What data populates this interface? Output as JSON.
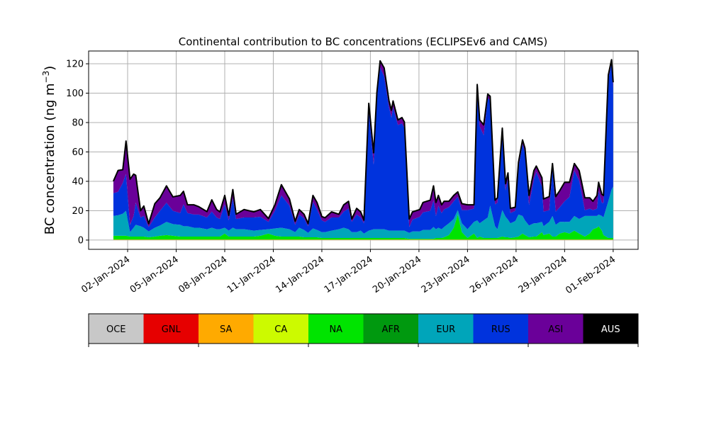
{
  "chart_data": {
    "type": "area",
    "stacked": true,
    "title": "Continental contribution to BC concentrations (ECLIPSEv6 and CAMS)",
    "ylabel": "BC concentration (ng m",
    "ylabel_sup": "−3",
    "ylabel_close": ")",
    "xlabel": "",
    "ylim": [
      -6.3,
      128.7
    ],
    "xlim_days_since_01jan2024": [
      -1.41,
      32.54
    ],
    "grid": true,
    "yticks": [
      0,
      20,
      40,
      60,
      80,
      100,
      120
    ],
    "xticks": [
      {
        "t": 1,
        "label": "02-Jan-2024"
      },
      {
        "t": 4,
        "label": "05-Jan-2024"
      },
      {
        "t": 7,
        "label": "08-Jan-2024"
      },
      {
        "t": 10,
        "label": "11-Jan-2024"
      },
      {
        "t": 13,
        "label": "14-Jan-2024"
      },
      {
        "t": 16,
        "label": "17-Jan-2024"
      },
      {
        "t": 19,
        "label": "20-Jan-2024"
      },
      {
        "t": 22,
        "label": "23-Jan-2024"
      },
      {
        "t": 25,
        "label": "26-Jan-2024"
      },
      {
        "t": 28,
        "label": "29-Jan-2024"
      },
      {
        "t": 31,
        "label": "01-Feb-2024"
      }
    ],
    "x_unit": "days since 01-Jan-2024",
    "series_order": [
      "NA",
      "EUR",
      "RUS",
      "ASI"
    ],
    "series_colors": {
      "NA": "#00e400",
      "EUR": "#00a5ba",
      "RUS": "#0033dd",
      "ASI": "#6a0099"
    },
    "total_line_color": "#000000",
    "points": [
      [
        0.12,
        2.5,
        13.5,
        15.5,
        8.2
      ],
      [
        0.41,
        2.5,
        14,
        16,
        14.5
      ],
      [
        0.7,
        2.5,
        15,
        21,
        9
      ],
      [
        0.9,
        2.5,
        17,
        25,
        22.5
      ],
      [
        1.15,
        2,
        3,
        5,
        31
      ],
      [
        1.37,
        2,
        6,
        8,
        28.5
      ],
      [
        1.5,
        2,
        8,
        15,
        18.7
      ],
      [
        1.8,
        2,
        7,
        6,
        4.6
      ],
      [
        2.0,
        2,
        6,
        8,
        6.8
      ],
      [
        2.3,
        1.5,
        4,
        3,
        2.3
      ],
      [
        2.68,
        2,
        6,
        7,
        9.4
      ],
      [
        3.0,
        2.5,
        7,
        10,
        8.9
      ],
      [
        3.4,
        3,
        9,
        13,
        11.5
      ],
      [
        3.8,
        2.5,
        8,
        9,
        9.5
      ],
      [
        4.25,
        2,
        8,
        8,
        12
      ],
      [
        4.45,
        2,
        7,
        15,
        8.8
      ],
      [
        4.7,
        2,
        7,
        9,
        5.6
      ],
      [
        5.1,
        2,
        6,
        9,
        6.6
      ],
      [
        5.4,
        2,
        6,
        9,
        5.3
      ],
      [
        5.9,
        2,
        5,
        8,
        4
      ],
      [
        6.2,
        2,
        6,
        11,
        8
      ],
      [
        6.5,
        2,
        5,
        8,
        5.4
      ],
      [
        6.7,
        2,
        5,
        7,
        4.8
      ],
      [
        7.0,
        4,
        4,
        16,
        6
      ],
      [
        7.25,
        2,
        4,
        7,
        3.4
      ],
      [
        7.5,
        2,
        6,
        20,
        6
      ],
      [
        7.7,
        2,
        5,
        7,
        3.2
      ],
      [
        8.2,
        2,
        5,
        8,
        5.4
      ],
      [
        8.8,
        2,
        4,
        9,
        3.8
      ],
      [
        9.2,
        2.5,
        4,
        9,
        4.9
      ],
      [
        9.7,
        4,
        3,
        5,
        2.3
      ],
      [
        10.1,
        2.5,
        5,
        12,
        4.1
      ],
      [
        10.5,
        2,
        6,
        22,
        7.3
      ],
      [
        11.0,
        2,
        5,
        16,
        4.6
      ],
      [
        11.35,
        2,
        3,
        5,
        2.4
      ],
      [
        11.6,
        2,
        6,
        9,
        3.4
      ],
      [
        11.9,
        1.5,
        5,
        8,
        2.7
      ],
      [
        12.15,
        1.5,
        3,
        4.5,
        1.8
      ],
      [
        12.45,
        1.5,
        6,
        18,
        4.5
      ],
      [
        12.7,
        1.5,
        5,
        14,
        4.7
      ],
      [
        13.0,
        1,
        4,
        8,
        2.6
      ],
      [
        13.2,
        1,
        4,
        7,
        2.8
      ],
      [
        13.6,
        1,
        5,
        9,
        3.8
      ],
      [
        14.05,
        1,
        6,
        8,
        2.2
      ],
      [
        14.35,
        1,
        7,
        11,
        4.6
      ],
      [
        14.65,
        1,
        6,
        14,
        5
      ],
      [
        14.85,
        1,
        4,
        7,
        2
      ],
      [
        15.15,
        1,
        4,
        12,
        4.2
      ],
      [
        15.4,
        1,
        5,
        9,
        3.8
      ],
      [
        15.6,
        1,
        3,
        7,
        2.2
      ],
      [
        15.9,
        1,
        5,
        82,
        4.7
      ],
      [
        16.2,
        1,
        6,
        44,
        8
      ],
      [
        16.4,
        1,
        6,
        90,
        3
      ],
      [
        16.6,
        1,
        6,
        110,
        4.6
      ],
      [
        16.85,
        1,
        6,
        104,
        5.8
      ],
      [
        17.15,
        1,
        5,
        84,
        4.3
      ],
      [
        17.3,
        1,
        5,
        77,
        5
      ],
      [
        17.4,
        1,
        5,
        84,
        4.3
      ],
      [
        17.7,
        1,
        5,
        72,
        3.4
      ],
      [
        17.95,
        1,
        5,
        73,
        4
      ],
      [
        18.1,
        1,
        5,
        70,
        4
      ],
      [
        18.4,
        0.5,
        4,
        4,
        5.5
      ],
      [
        18.6,
        0.5,
        5,
        8,
        5.3
      ],
      [
        19.05,
        0.5,
        5,
        10,
        4.9
      ],
      [
        19.25,
        0.5,
        6,
        12,
        6.7
      ],
      [
        19.7,
        0.5,
        6,
        13,
        7.3
      ],
      [
        19.9,
        0.5,
        8,
        18,
        10
      ],
      [
        20.05,
        1,
        6,
        9,
        9.2
      ],
      [
        20.2,
        1,
        7,
        15,
        7
      ],
      [
        20.4,
        1,
        6,
        11,
        5.6
      ],
      [
        20.55,
        1.5,
        7,
        12,
        5.5
      ],
      [
        20.85,
        3,
        8,
        11,
        4
      ],
      [
        21.15,
        8,
        6,
        12,
        4
      ],
      [
        21.4,
        17,
        3,
        9,
        3.4
      ],
      [
        21.65,
        5,
        6,
        9,
        4.4
      ],
      [
        22.0,
        1,
        6,
        13,
        3.6
      ],
      [
        22.4,
        4,
        8,
        9,
        2.6
      ],
      [
        22.6,
        1,
        12,
        88,
        4.5
      ],
      [
        22.75,
        2,
        9,
        66,
        4.4
      ],
      [
        23.0,
        1,
        12,
        58,
        7
      ],
      [
        23.25,
        1,
        14,
        81,
        3
      ],
      [
        23.4,
        1,
        22,
        72,
        2.5
      ],
      [
        23.7,
        1,
        8,
        15,
        2.8
      ],
      [
        23.85,
        1,
        6,
        18,
        3.4
      ],
      [
        24.15,
        2,
        18,
        52,
        3.8
      ],
      [
        24.35,
        1.5,
        14,
        18,
        4.5
      ],
      [
        24.5,
        1.5,
        12,
        28,
        3.8
      ],
      [
        24.65,
        1,
        10,
        7,
        3.2
      ],
      [
        24.95,
        1.5,
        11,
        7,
        2.5
      ],
      [
        25.15,
        2,
        15,
        32,
        3.5
      ],
      [
        25.4,
        4,
        12,
        49,
        2.8
      ],
      [
        25.55,
        3,
        10,
        46,
        3.2
      ],
      [
        25.8,
        1.5,
        8,
        14,
        6.5
      ],
      [
        26.1,
        2,
        9,
        30,
        5.9
      ],
      [
        26.25,
        2,
        9,
        35,
        4
      ],
      [
        26.6,
        5,
        7,
        24,
        6
      ],
      [
        26.7,
        3,
        6,
        10,
        8.6
      ],
      [
        27.05,
        4,
        8,
        8,
        9.2
      ],
      [
        27.25,
        2,
        14,
        32,
        3.7
      ],
      [
        27.45,
        2,
        8,
        9,
        10.2
      ],
      [
        27.7,
        4,
        8,
        10,
        11.3
      ],
      [
        28.0,
        5,
        7,
        14,
        12.9
      ],
      [
        28.3,
        4,
        8,
        17,
        9.9
      ],
      [
        28.6,
        6,
        10,
        31,
        4.7
      ],
      [
        28.9,
        4,
        10,
        26,
        6.9
      ],
      [
        29.25,
        2,
        14,
        4,
        8.4
      ],
      [
        29.55,
        4,
        12,
        5,
        7.4
      ],
      [
        29.75,
        7,
        9,
        4,
        6
      ],
      [
        30.0,
        8,
        8,
        5,
        9
      ],
      [
        30.1,
        9,
        8,
        16,
        5.9
      ],
      [
        30.3,
        6,
        10,
        9,
        5.8
      ],
      [
        30.4,
        3,
        12,
        10,
        5
      ],
      [
        30.7,
        1,
        25,
        83,
        3
      ],
      [
        30.9,
        1,
        33,
        86,
        2.4
      ],
      [
        31.0,
        1,
        35,
        67,
        4
      ]
    ],
    "legend": {
      "placement": "bottom-colorbar",
      "entries": [
        {
          "label": "OCE",
          "color": "#c8c8c8",
          "text_color": "#000000"
        },
        {
          "label": "GNL",
          "color": "#e60000",
          "text_color": "#000000"
        },
        {
          "label": "SA",
          "color": "#ffaa00",
          "text_color": "#000000"
        },
        {
          "label": "CA",
          "color": "#ccfa00",
          "text_color": "#000000"
        },
        {
          "label": "NA",
          "color": "#00e400",
          "text_color": "#000000"
        },
        {
          "label": "AFR",
          "color": "#00990f",
          "text_color": "#000000"
        },
        {
          "label": "EUR",
          "color": "#00a5ba",
          "text_color": "#000000"
        },
        {
          "label": "RUS",
          "color": "#0033dd",
          "text_color": "#000000"
        },
        {
          "label": "ASI",
          "color": "#6a0099",
          "text_color": "#000000"
        },
        {
          "label": "AUS",
          "color": "#000000",
          "text_color": "#ffffff"
        }
      ]
    }
  }
}
